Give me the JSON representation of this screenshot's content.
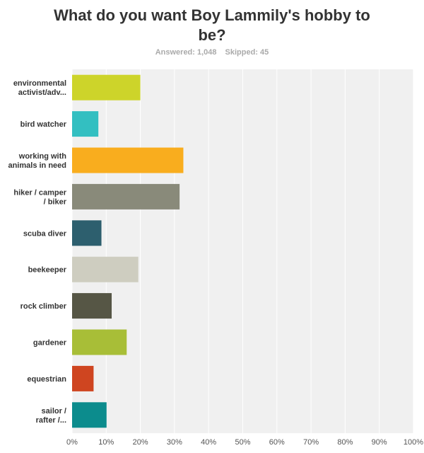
{
  "header": {
    "title_line1": "What do you want Boy Lammily's hobby to",
    "title_line2": "be?",
    "answered": "Answered: 1,048",
    "skipped": "Skipped: 45"
  },
  "chart_data": {
    "type": "bar",
    "orientation": "horizontal",
    "categories": [
      [
        "environmental",
        "activist/adv..."
      ],
      [
        "bird watcher"
      ],
      [
        "working with",
        "animals in need"
      ],
      [
        "hiker / camper",
        "/ biker"
      ],
      [
        "scuba diver"
      ],
      [
        "beekeeper"
      ],
      [
        "rock climber"
      ],
      [
        "gardener"
      ],
      [
        "equestrian"
      ],
      [
        "sailor /",
        "rafter /..."
      ]
    ],
    "values": [
      20,
      7.7,
      32.6,
      31.5,
      8.6,
      19.4,
      11.6,
      16,
      6.3,
      10.1
    ],
    "colors": [
      "#cdd42a",
      "#33bfc1",
      "#f9ad1e",
      "#898a7a",
      "#2d5f6e",
      "#cecdc0",
      "#565645",
      "#a8be37",
      "#cf4520",
      "#0c8c8d"
    ],
    "xlim": [
      0,
      100
    ],
    "x_ticks": [
      "0%",
      "10%",
      "20%",
      "30%",
      "40%",
      "50%",
      "60%",
      "70%",
      "80%",
      "90%",
      "100%"
    ],
    "grid": true
  }
}
